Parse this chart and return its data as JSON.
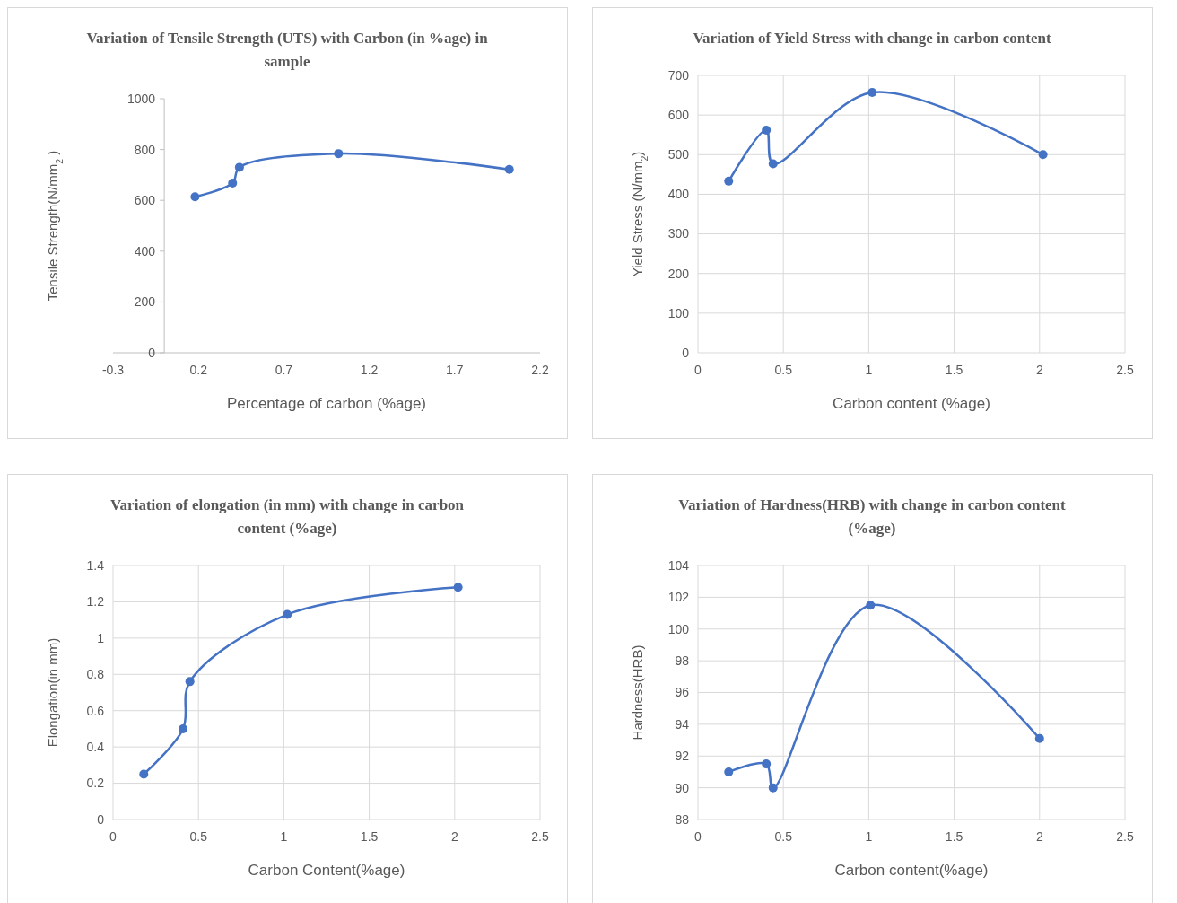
{
  "chart_data": [
    {
      "type": "line",
      "title": "Variation of Tensile Strength (UTS) with Carbon (in %age) in sample",
      "xlabel": "Percentage of carbon (%age)",
      "ylabel": "Tensile Strength(N/mm$_{2}$ )",
      "x": [
        0.18,
        0.4,
        0.44,
        1.02,
        2.02
      ],
      "xlim": [
        -0.3,
        2.2
      ],
      "xticks": [
        -0.3,
        0.2,
        0.7,
        1.2,
        1.7,
        2.2
      ],
      "ylim": [
        0,
        1000
      ],
      "yticks": [
        0,
        200,
        400,
        600,
        800,
        1000
      ],
      "grid": false,
      "marker": "circle",
      "line_style": "solid",
      "series": [
        {
          "color": "#4472c4",
          "values": [
            614,
            668,
            730,
            784,
            722
          ]
        }
      ]
    },
    {
      "type": "line",
      "title": "Variation of Yield Stress with change in carbon content",
      "xlabel": "Carbon content (%age)",
      "ylabel": "Yield Stress (N/mm$_{2}$)",
      "x": [
        0.18,
        0.4,
        0.44,
        1.02,
        2.02
      ],
      "xlim": [
        0,
        2.5
      ],
      "xticks": [
        0,
        0.5,
        1,
        1.5,
        2,
        2.5
      ],
      "ylim": [
        0,
        700
      ],
      "yticks": [
        0,
        100,
        200,
        300,
        400,
        500,
        600,
        700
      ],
      "grid": true,
      "marker": "circle",
      "line_style": "solid",
      "series": [
        {
          "color": "#4472c4",
          "values": [
            433,
            562,
            477,
            657,
            500
          ]
        }
      ]
    },
    {
      "type": "line",
      "title": "Variation of elongation (in mm) with change in carbon content (%age)",
      "xlabel": "Carbon Content(%age)",
      "ylabel": "Elongation(in mm)",
      "x": [
        0.18,
        0.41,
        0.45,
        1.02,
        2.02
      ],
      "xlim": [
        0,
        2.5
      ],
      "xticks": [
        0,
        0.5,
        1,
        1.5,
        2,
        2.5
      ],
      "ylim": [
        0,
        1.4
      ],
      "yticks": [
        0,
        0.2,
        0.4,
        0.6,
        0.8,
        1,
        1.2,
        1.4
      ],
      "grid": true,
      "marker": "circle",
      "line_style": "solid",
      "series": [
        {
          "color": "#4472c4",
          "values": [
            0.25,
            0.5,
            0.76,
            1.13,
            1.28
          ]
        }
      ]
    },
    {
      "type": "line",
      "title": "Variation of Hardness(HRB) with change in carbon content (%age)",
      "xlabel": "Carbon content(%age)",
      "ylabel": "Hardness(HRB)",
      "x": [
        0.18,
        0.4,
        0.44,
        1.01,
        2.0
      ],
      "xlim": [
        0,
        2.5
      ],
      "xticks": [
        0,
        0.5,
        1,
        1.5,
        2,
        2.5
      ],
      "ylim": [
        88,
        104
      ],
      "yticks": [
        88,
        90,
        92,
        94,
        96,
        98,
        100,
        102,
        104
      ],
      "grid": true,
      "marker": "circle",
      "line_style": "solid",
      "series": [
        {
          "color": "#4472c4",
          "values": [
            91.0,
            91.5,
            90.0,
            101.5,
            93.1
          ]
        }
      ]
    }
  ]
}
